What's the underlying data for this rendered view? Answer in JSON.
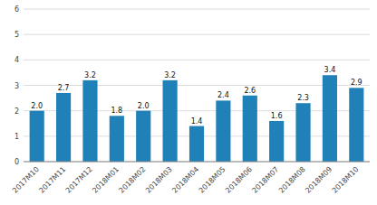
{
  "chart_data": {
    "type": "bar",
    "categories": [
      "2017M10",
      "2017M11",
      "2017M12",
      "2018M01",
      "2018M02",
      "2018M03",
      "2018M04",
      "2018M05",
      "2018M06",
      "2018M07",
      "2018M08",
      "2018M09",
      "2018M10"
    ],
    "values": [
      2.0,
      2.7,
      3.2,
      1.8,
      2.0,
      3.2,
      1.4,
      2.4,
      2.6,
      1.6,
      2.3,
      3.4,
      2.9
    ],
    "value_labels": [
      "2.0",
      "2.7",
      "3.2",
      "1.8",
      "2.0",
      "3.2",
      "1.4",
      "2.4",
      "2.6",
      "1.6",
      "2.3",
      "3.4",
      "2.9"
    ],
    "color": "#2080b8",
    "ylim": [
      0,
      6
    ],
    "yticks": [
      0,
      1,
      2,
      3,
      4,
      5,
      6
    ],
    "grid": true,
    "data_labels": true
  }
}
